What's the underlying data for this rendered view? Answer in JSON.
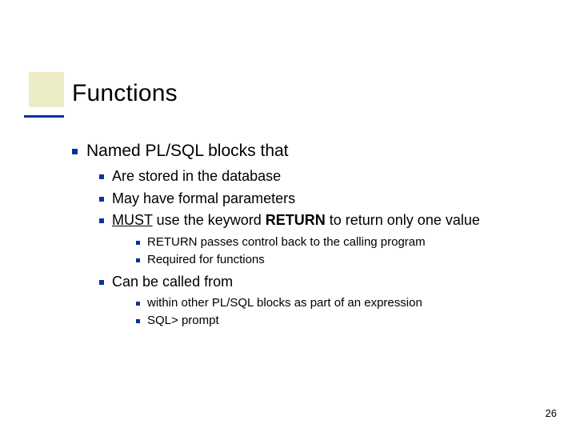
{
  "colors": {
    "bullet": "#003399",
    "accent_bg": "#e6e6b3",
    "accent_line": "#003399",
    "background": "#ffffff",
    "text": "#000000"
  },
  "title": "Functions",
  "page_number": "26",
  "content": {
    "root": {
      "text": "Named PL/SQL blocks that"
    },
    "sub": [
      {
        "text": "Are stored in the database"
      },
      {
        "text": "May have formal parameters"
      },
      {
        "prefix": "MUST",
        "mid": " use the keyword ",
        "keyword": "RETURN",
        "suffix": " to return only one value",
        "detail": [
          {
            "text": "RETURN passes control back to the calling program"
          },
          {
            "text": "Required for functions"
          }
        ]
      },
      {
        "text": "Can be called from",
        "detail": [
          {
            "text": "within other PL/SQL blocks as part of an expression"
          },
          {
            "text": "SQL> prompt"
          }
        ]
      }
    ]
  }
}
